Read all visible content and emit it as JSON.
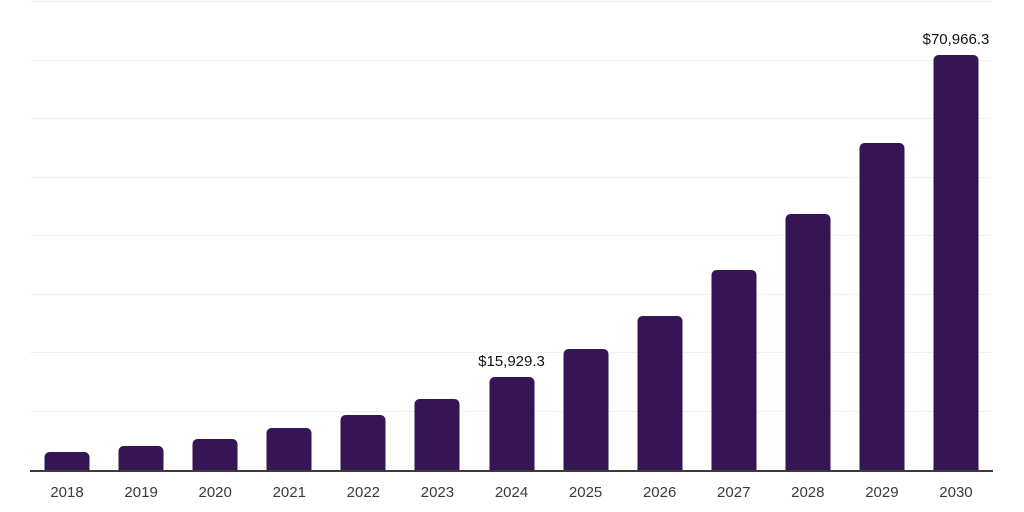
{
  "chart": {
    "colors": {
      "bar": "#351554",
      "axis": "#3b3b3b",
      "grid": "#f1f1f4",
      "data_label": "#111111",
      "tick_label": "#3a3a3a",
      "background": "#ffffff"
    }
  },
  "chart_data": {
    "type": "bar",
    "title": "",
    "xlabel": "",
    "ylabel": "",
    "categories": [
      "2018",
      "2019",
      "2020",
      "2021",
      "2022",
      "2023",
      "2024",
      "2025",
      "2026",
      "2027",
      "2028",
      "2029",
      "2030"
    ],
    "values": [
      3100,
      4100,
      5300,
      7200,
      9400,
      12100,
      15929.3,
      20700,
      26300,
      34200,
      43800,
      55900,
      70966.3
    ],
    "bar_labels": [
      "",
      "",
      "",
      "",
      "",
      "",
      "$15,929.3",
      "",
      "",
      "",
      "",
      "",
      "$70,966.3"
    ],
    "ylim": [
      0,
      80000
    ],
    "gridline_interval": 10000,
    "grid": true,
    "legend_position": "none",
    "y_tick_labels_shown": false
  }
}
